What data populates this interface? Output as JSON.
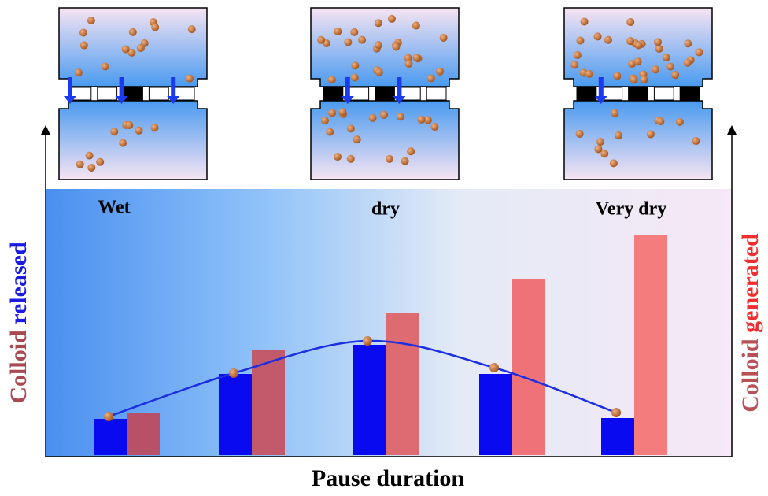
{
  "chart_data": {
    "type": "bar",
    "categories": [
      null,
      null,
      null,
      null,
      null
    ],
    "xlabel": "Pause duration",
    "ylabel_parts": [
      "Colloid",
      "released"
    ],
    "y2label_parts": [
      "Colloid",
      "generated"
    ],
    "annotations": [
      "Wet",
      "dry",
      "Very dry"
    ],
    "ylim": [
      0,
      338
    ],
    "series": [
      {
        "color": "#0a0af0",
        "values": [
          46,
          103,
          140,
          103,
          47
        ]
      },
      {
        "colors": [
          "#b85068",
          "#c25a6c",
          "#de6a72",
          "#ee7278",
          "#f47c7c"
        ],
        "values": [
          54,
          134,
          181,
          224,
          279
        ]
      }
    ],
    "line": {
      "color": "#1b2fe0",
      "marker_color": "#b8672a",
      "values": [
        49,
        104,
        145,
        111,
        54
      ]
    }
  }
}
